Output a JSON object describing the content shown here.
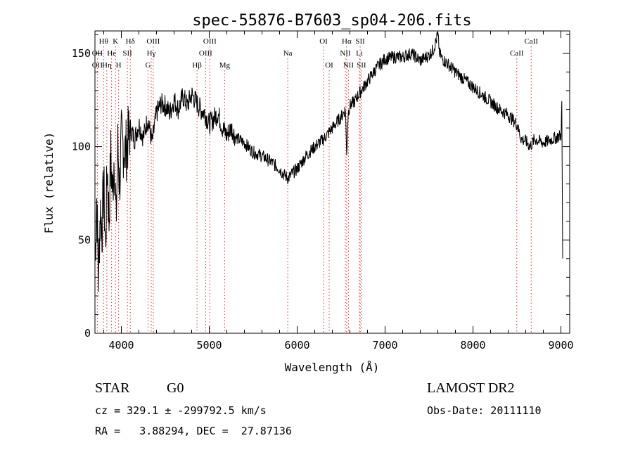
{
  "chart_data": {
    "type": "line",
    "title": "spec-55876-B7603_sp04-206.fits",
    "xlabel": "Wavelength (Å)",
    "ylabel": "Flux (relative)",
    "xlim": [
      3700,
      9100
    ],
    "ylim": [
      0,
      162
    ],
    "xticks": [
      4000,
      5000,
      6000,
      7000,
      8000,
      9000
    ],
    "yticks": [
      0,
      50,
      100,
      150
    ],
    "grid": false,
    "series": [
      {
        "color": "#000000",
        "x": [
          3700,
          3720,
          3740,
          3760,
          3780,
          3800,
          3820,
          3840,
          3860,
          3880,
          3900,
          3920,
          3940,
          3960,
          3980,
          4000,
          4050,
          4100,
          4150,
          4200,
          4250,
          4300,
          4350,
          4400,
          4450,
          4500,
          4550,
          4600,
          4650,
          4700,
          4750,
          4800,
          4850,
          4900,
          4950,
          5000,
          5050,
          5100,
          5150,
          5200,
          5250,
          5300,
          5400,
          5500,
          5600,
          5700,
          5800,
          5850,
          5900,
          5950,
          6000,
          6100,
          6200,
          6300,
          6400,
          6500,
          6550,
          6563,
          6580,
          6600,
          6650,
          6700,
          6800,
          6900,
          7000,
          7100,
          7200,
          7300,
          7400,
          7500,
          7550,
          7600,
          7620,
          7650,
          7700,
          7800,
          7900,
          8000,
          8100,
          8200,
          8300,
          8400,
          8500,
          8550,
          8600,
          8650,
          8700,
          8800,
          8900,
          9000,
          9010,
          9020
        ],
        "values": [
          40,
          72,
          30,
          68,
          55,
          80,
          45,
          90,
          60,
          95,
          75,
          98,
          58,
          100,
          80,
          103,
          97,
          110,
          104,
          112,
          105,
          115,
          102,
          118,
          123,
          122,
          118,
          125,
          120,
          127,
          122,
          128,
          124,
          120,
          118,
          112,
          115,
          118,
          110,
          106,
          110,
          105,
          102,
          97,
          95,
          92,
          88,
          85,
          83,
          86,
          88,
          95,
          100,
          104,
          110,
          116,
          120,
          95,
          118,
          122,
          124,
          128,
          135,
          142,
          147,
          148,
          148,
          150,
          146,
          149,
          152,
          160,
          150,
          147,
          145,
          140,
          136,
          132,
          128,
          124,
          120,
          117,
          112,
          104,
          103,
          100,
          104,
          102,
          104,
          106,
          122,
          40
        ]
      }
    ],
    "line_markers": [
      {
        "label": "Hθ",
        "x": 3798,
        "row": 0
      },
      {
        "label": "OII",
        "x": 3727,
        "row": 1
      },
      {
        "label": "OII",
        "x": 3727,
        "row": 2
      },
      {
        "label": "K",
        "x": 3934,
        "row": 0
      },
      {
        "label": "H",
        "x": 3969,
        "row": 2
      },
      {
        "label": "Hη",
        "x": 3835,
        "row": 2
      },
      {
        "label": "He",
        "x": 3889,
        "row": 1
      },
      {
        "label": "SII",
        "x": 4069,
        "row": 1
      },
      {
        "label": "Hδ",
        "x": 4102,
        "row": 0
      },
      {
        "label": "OIII",
        "x": 4363,
        "row": 0
      },
      {
        "label": "Hγ",
        "x": 4340,
        "row": 1
      },
      {
        "label": "G",
        "x": 4304,
        "row": 2
      },
      {
        "label": "Hβ",
        "x": 4861,
        "row": 2
      },
      {
        "label": "OIII",
        "x": 5007,
        "row": 0
      },
      {
        "label": "OIII",
        "x": 4959,
        "row": 1
      },
      {
        "label": "Mg",
        "x": 5175,
        "row": 2
      },
      {
        "label": "Na",
        "x": 5893,
        "row": 1
      },
      {
        "label": "OI",
        "x": 6300,
        "row": 0
      },
      {
        "label": "OI",
        "x": 6364,
        "row": 2
      },
      {
        "label": "Hα",
        "x": 6563,
        "row": 0
      },
      {
        "label": "SII",
        "x": 6717,
        "row": 0
      },
      {
        "label": "NII",
        "x": 6548,
        "row": 1
      },
      {
        "label": "Li",
        "x": 6708,
        "row": 1
      },
      {
        "label": "NII",
        "x": 6583,
        "row": 2
      },
      {
        "label": "SII",
        "x": 6731,
        "row": 2
      },
      {
        "label": "CaII",
        "x": 8662,
        "row": 0
      },
      {
        "label": "CaII",
        "x": 8498,
        "row": 1
      }
    ]
  },
  "info": {
    "object_class": "STAR",
    "subclass": "G0",
    "survey": "LAMOST DR2",
    "cz_line": "cz = 329.1 ± -299792.5 km/s",
    "obs_date": "Obs-Date: 20111110",
    "radec_line": "RA =   3.88294, DEC =  27.87136"
  }
}
